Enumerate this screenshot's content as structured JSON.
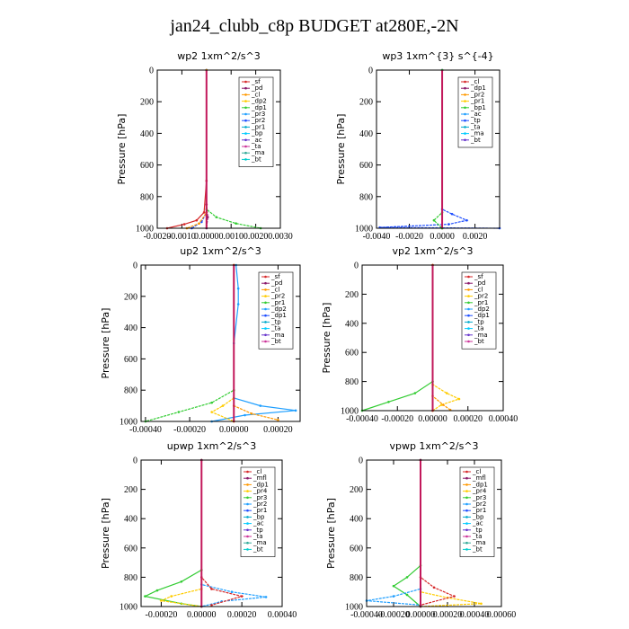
{
  "title": "jan24_clubb_c8p  BUDGET at280E,-2N",
  "chart_data": [
    {
      "type": "line",
      "title": "wp2   1xm^2/s^3",
      "ylabel": "Pressure  [hPa]",
      "ylim": [
        1000,
        0
      ],
      "yticks": [
        "0",
        "200",
        "400",
        "600",
        "800",
        "1000"
      ],
      "xlim": [
        -0.002,
        0.003
      ],
      "xticks": [
        -0.002,
        -0.001,
        0.0,
        0.001,
        0.002,
        0.003
      ],
      "xtick_labels": [
        "-0.0020",
        "-0.0010",
        "0.0000",
        "0.0010",
        "0.0020",
        "0.0030"
      ],
      "legend": [
        "_sf",
        "_pd",
        "_cl",
        "_dp2",
        "_dp1",
        "_pr3",
        "_pr2",
        "_pr1",
        "_bp",
        "_ac",
        "_ta",
        "_ma",
        "_bt"
      ],
      "series": [
        {
          "color": "#d62728",
          "points": [
            [
              0.0,
              0
            ],
            [
              0.0,
              700
            ],
            [
              -0.0001,
              900
            ],
            [
              -0.0004,
              950
            ],
            [
              -0.0009,
              975
            ],
            [
              -0.0016,
              1000
            ]
          ]
        },
        {
          "color": "#8b1a6b",
          "points": [
            [
              0.0,
              0
            ],
            [
              0.0,
              850
            ],
            [
              5e-05,
              930
            ],
            [
              0.0,
              1000
            ]
          ]
        },
        {
          "color": "#33cc33",
          "points": [
            [
              0.0,
              0
            ],
            [
              0.0,
              880
            ],
            [
              0.0004,
              930
            ],
            [
              0.0012,
              970
            ],
            [
              0.0022,
              1000
            ]
          ]
        },
        {
          "color": "#1f4fff",
          "points": [
            [
              0.0,
              0
            ],
            [
              0.0,
              900
            ],
            [
              -0.0002,
              960
            ],
            [
              -0.0006,
              1000
            ]
          ]
        },
        {
          "color": "#ff9900",
          "points": [
            [
              0.0,
              0
            ],
            [
              0.0,
              900
            ],
            [
              -0.0003,
              970
            ],
            [
              -0.0008,
              1000
            ]
          ]
        }
      ]
    },
    {
      "type": "line",
      "title": "wp3   1xm^{3} s^{-4}",
      "ylabel": "Pressure  [hPa]",
      "ylim": [
        1000,
        0
      ],
      "yticks": [
        "0",
        "200",
        "400",
        "600",
        "800",
        "1000"
      ],
      "xlim": [
        -0.004,
        0.0035
      ],
      "xticks": [
        -0.004,
        -0.002,
        0.0,
        0.002
      ],
      "xtick_labels": [
        "-0.0040",
        "-0.0020",
        "0.0000",
        "0.0020"
      ],
      "legend": [
        "_cl",
        "_dp1",
        "_pr2",
        "_pr1",
        "_bp1",
        "_ac",
        "_tp",
        "_ta",
        "_ma",
        "_bt"
      ],
      "series": [
        {
          "color": "#d62728",
          "points": [
            [
              0.0,
              0
            ],
            [
              0.0,
              1000
            ]
          ]
        },
        {
          "color": "#1f4fff",
          "points": [
            [
              0.0,
              0
            ],
            [
              0.0,
              880
            ],
            [
              0.0006,
              910
            ],
            [
              0.0015,
              950
            ],
            [
              0.0004,
              975
            ],
            [
              -0.0038,
              995
            ],
            [
              0.0035,
              1000
            ]
          ]
        },
        {
          "color": "#33cc33",
          "points": [
            [
              0.0,
              0
            ],
            [
              0.0,
              900
            ],
            [
              -0.0005,
              950
            ],
            [
              0.0,
              1000
            ]
          ]
        }
      ]
    },
    {
      "type": "line",
      "title": "up2   1xm^2/s^3",
      "ylabel": "Pressure  [hPa]",
      "ylim": [
        1000,
        0
      ],
      "yticks": [
        "0",
        "200",
        "400",
        "600",
        "800",
        "1000"
      ],
      "xlim": [
        -0.00042,
        0.0003
      ],
      "xticks": [
        -0.0004,
        -0.0002,
        0.0,
        0.0002
      ],
      "xtick_labels": [
        "-0.00040",
        "-0.00020",
        "0.00000",
        "0.00020"
      ],
      "legend": [
        "_sf",
        "_pd",
        "_cl",
        "_pr2",
        "_pr1",
        "_dp2",
        "_dp1",
        "_tp",
        "_ta",
        "_ma",
        "_bt"
      ],
      "series": [
        {
          "color": "#1f9fff",
          "points": [
            [
              1e-05,
              0
            ],
            [
              2e-05,
              150
            ],
            [
              2e-05,
              250
            ],
            [
              0.0,
              500
            ],
            [
              0.0,
              850
            ],
            [
              0.00012,
              900
            ],
            [
              0.00028,
              930
            ],
            [
              5e-05,
              960
            ],
            [
              -0.0001,
              1000
            ]
          ]
        },
        {
          "color": "#33cc33",
          "points": [
            [
              0.0,
              0
            ],
            [
              0.0,
              800
            ],
            [
              -0.0001,
              880
            ],
            [
              -0.00025,
              940
            ],
            [
              -0.0004,
              1000
            ]
          ]
        },
        {
          "color": "#ffcc00",
          "points": [
            [
              0.0,
              0
            ],
            [
              0.0,
              850
            ],
            [
              -5e-05,
              900
            ],
            [
              -0.0001,
              940
            ],
            [
              0.0,
              1000
            ]
          ]
        },
        {
          "color": "#ff9900",
          "points": [
            [
              0.0,
              0
            ],
            [
              0.0,
              900
            ],
            [
              8e-05,
              950
            ],
            [
              0.0002,
              990
            ]
          ]
        },
        {
          "color": "#d62728",
          "points": [
            [
              0.0,
              0
            ],
            [
              0.0,
              1000
            ]
          ]
        }
      ]
    },
    {
      "type": "line",
      "title": "vp2   1xm^2/s^3",
      "ylabel": "Pressure  [hPa]",
      "ylim": [
        1000,
        0
      ],
      "yticks": [
        "0",
        "200",
        "400",
        "600",
        "800",
        "1000"
      ],
      "xlim": [
        -0.0004,
        0.0004
      ],
      "xticks": [
        -0.0004,
        -0.0002,
        0.0,
        0.0002,
        0.0004
      ],
      "xtick_labels": [
        "-0.00040",
        "-0.00020",
        "0.00000",
        "0.00020",
        "0.00040"
      ],
      "legend": [
        "_sf",
        "_pd",
        "_cl",
        "_pr2",
        "_pr1",
        "_dp2",
        "_dp1",
        "_tp",
        "_ta",
        "_ma",
        "_bt"
      ],
      "series": [
        {
          "color": "#33cc33",
          "points": [
            [
              0.0,
              0
            ],
            [
              0.0,
              800
            ],
            [
              -0.0001,
              880
            ],
            [
              -0.00025,
              940
            ],
            [
              -0.0004,
              1000
            ]
          ]
        },
        {
          "color": "#ffcc00",
          "points": [
            [
              0.0,
              0
            ],
            [
              0.0,
              820
            ],
            [
              8e-05,
              880
            ],
            [
              0.00015,
              920
            ],
            [
              5e-05,
              960
            ],
            [
              0.0,
              1000
            ]
          ]
        },
        {
          "color": "#ff9900",
          "points": [
            [
              0.0,
              0
            ],
            [
              0.0,
              900
            ],
            [
              6e-05,
              960
            ],
            [
              0.0001,
              995
            ]
          ]
        },
        {
          "color": "#d62728",
          "points": [
            [
              0.0,
              0
            ],
            [
              0.0,
              1000
            ]
          ]
        }
      ]
    },
    {
      "type": "line",
      "title": "upwp   1xm^2/s^3",
      "ylabel": "Pressure  [hPa]",
      "ylim": [
        1000,
        0
      ],
      "yticks": [
        "0",
        "200",
        "400",
        "600",
        "800",
        "1000"
      ],
      "xlim": [
        -0.0003,
        0.0004
      ],
      "xticks": [
        -0.0002,
        0.0,
        0.0002,
        0.0004
      ],
      "xtick_labels": [
        "-0.00020",
        "0.00000",
        "0.00020",
        "0.00040"
      ],
      "legend": [
        "_cl",
        "_mfl",
        "_dp1",
        "_pr4",
        "_pr3",
        "_pr2",
        "_pr1",
        "_bp",
        "_ac",
        "_tp",
        "_ta",
        "_ma",
        "_bt"
      ],
      "series": [
        {
          "color": "#33cc33",
          "points": [
            [
              0.0,
              0
            ],
            [
              0.0,
              750
            ],
            [
              -0.0001,
              830
            ],
            [
              -0.00022,
              890
            ],
            [
              -0.00028,
              930
            ],
            [
              -0.0001,
              980
            ],
            [
              0.0,
              1000
            ]
          ]
        },
        {
          "color": "#1f9fff",
          "points": [
            [
              0.0,
              0
            ],
            [
              0.0,
              850
            ],
            [
              0.00015,
              900
            ],
            [
              0.00032,
              935
            ],
            [
              0.0001,
              965
            ],
            [
              0.0,
              1000
            ]
          ]
        },
        {
          "color": "#ffcc00",
          "points": [
            [
              0.0,
              0
            ],
            [
              0.0,
              880
            ],
            [
              -0.00015,
              930
            ],
            [
              -0.0002,
              960
            ],
            [
              0.0,
              1000
            ]
          ]
        },
        {
          "color": "#d62728",
          "points": [
            [
              0.0,
              0
            ],
            [
              0.0,
              800
            ],
            [
              5e-05,
              880
            ],
            [
              0.0002,
              930
            ],
            [
              5e-05,
              990
            ]
          ]
        },
        {
          "color": "#8b1a6b",
          "points": [
            [
              0.0,
              0
            ],
            [
              0.0,
              1000
            ]
          ]
        }
      ]
    },
    {
      "type": "line",
      "title": "vpwp   1xm^2/s^3",
      "ylabel": "Pressure  [hPa]",
      "ylim": [
        1000,
        0
      ],
      "yticks": [
        "0",
        "200",
        "400",
        "600",
        "800",
        "1000"
      ],
      "xlim": [
        -0.0004,
        0.0006
      ],
      "xticks": [
        -0.0004,
        -0.0002,
        0.0,
        0.0002,
        0.0004,
        0.0006
      ],
      "xtick_labels": [
        "-0.00040",
        "-0.00020",
        "0.00000",
        "0.00020",
        "0.00040",
        "0.00060"
      ],
      "legend": [
        "_cl",
        "_mfl",
        "_dp1",
        "_pr4",
        "_pr3",
        "_pr2",
        "_pr1",
        "_bp",
        "_ac",
        "_tp",
        "_ta",
        "_ma",
        "_bt"
      ],
      "series": [
        {
          "color": "#33cc33",
          "points": [
            [
              0.0,
              0
            ],
            [
              0.0,
              720
            ],
            [
              -0.0001,
              800
            ],
            [
              -0.0002,
              860
            ],
            [
              -0.0001,
              920
            ],
            [
              0.0,
              1000
            ]
          ]
        },
        {
          "color": "#1f9fff",
          "points": [
            [
              0.0,
              0
            ],
            [
              0.0,
              880
            ],
            [
              -0.0002,
              930
            ],
            [
              -0.0004,
              960
            ],
            [
              0.0,
              990
            ]
          ]
        },
        {
          "color": "#ffcc00",
          "points": [
            [
              0.0,
              0
            ],
            [
              0.0,
              900
            ],
            [
              0.0002,
              940
            ],
            [
              0.00045,
              980
            ],
            [
              0.0,
              1000
            ]
          ]
        },
        {
          "color": "#d62728",
          "points": [
            [
              0.0,
              0
            ],
            [
              0.0,
              800
            ],
            [
              0.0001,
              870
            ],
            [
              0.00025,
              930
            ],
            [
              0.0,
              990
            ]
          ]
        },
        {
          "color": "#8b1a6b",
          "points": [
            [
              0.0,
              0
            ],
            [
              0.0,
              1000
            ]
          ]
        }
      ]
    }
  ]
}
